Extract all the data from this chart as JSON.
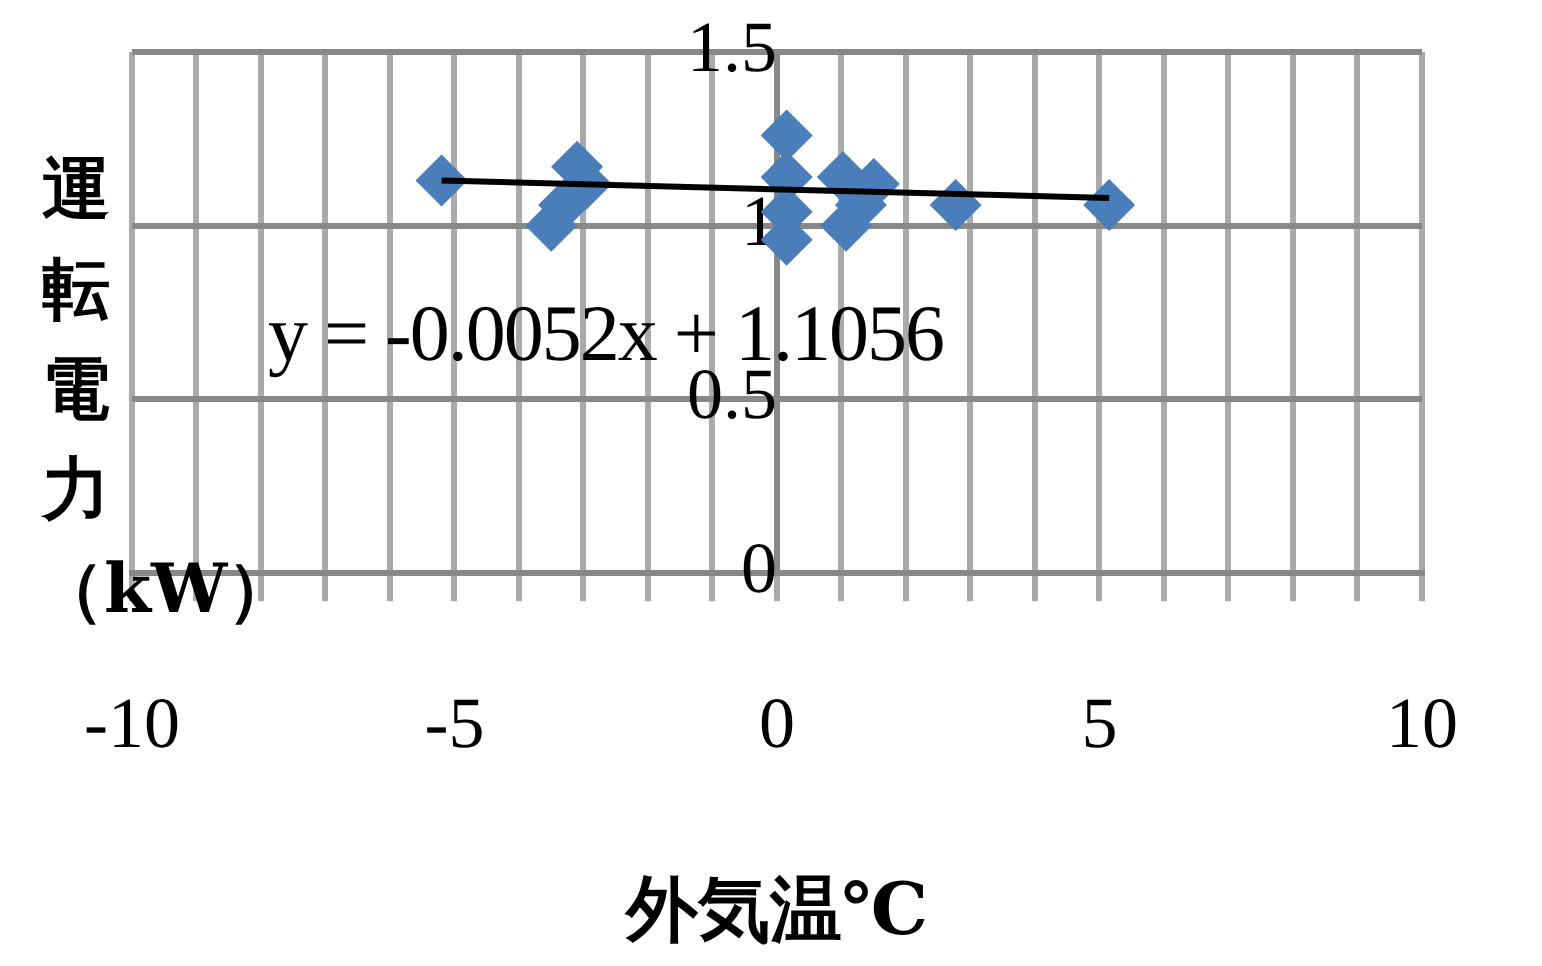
{
  "chart_data": {
    "type": "scatter",
    "xlabel": "外気温℃",
    "ylabel": "運転電力（kW）",
    "annotations": [
      "y = -0.0052x + 1.1056"
    ],
    "series": [
      {
        "color": "#4a7ebb",
        "x": [
          -5.2,
          -3.5,
          -3.1,
          -3.3,
          -2.96,
          0.15,
          0.15,
          0.15,
          0.15,
          1.02,
          1.5,
          1.07,
          1.3,
          2.77,
          5.15
        ],
        "values": [
          1.13,
          1.0,
          1.17,
          1.06,
          1.12,
          1.26,
          1.14,
          1.04,
          0.96,
          1.14,
          1.12,
          1.0,
          1.06,
          1.06,
          1.06
        ]
      },
      {
        "type": "line",
        "color": "#000000",
        "marker": "none",
        "x": [
          -5.2,
          5.15
        ],
        "values": [
          1.13,
          1.08
        ]
      }
    ],
    "xlim": [
      -10,
      10
    ],
    "xticks": [
      -10,
      {
        "value": -9,
        "label": null
      },
      {
        "value": -8,
        "label": null
      },
      {
        "value": -7,
        "label": null
      },
      {
        "value": -6,
        "label": null
      },
      -5,
      {
        "value": -4,
        "label": null
      },
      {
        "value": -3,
        "label": null
      },
      {
        "value": -2,
        "label": null
      },
      {
        "value": -1,
        "label": null
      },
      0,
      {
        "value": 1,
        "label": null
      },
      {
        "value": 2,
        "label": null
      },
      {
        "value": 3,
        "label": null
      },
      {
        "value": 4,
        "label": null
      },
      5,
      {
        "value": 6,
        "label": null
      },
      {
        "value": 7,
        "label": null
      },
      {
        "value": 8,
        "label": null
      },
      {
        "value": 9,
        "label": null
      },
      10
    ],
    "ylim": [
      0,
      1.5
    ],
    "yticks": [
      0,
      0.5,
      1,
      1.5
    ],
    "grid": true,
    "legend": false,
    "marker": "diamond"
  }
}
